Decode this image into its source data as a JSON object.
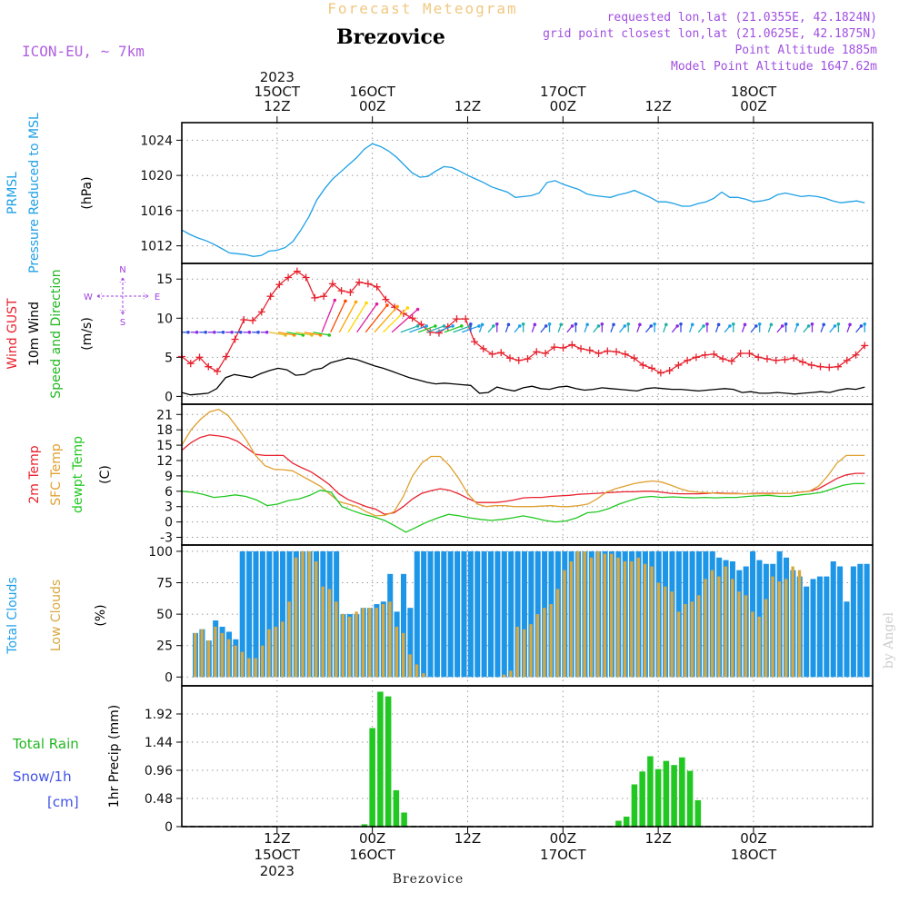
{
  "header": {
    "product_title": "Forecast Meteogram",
    "location": "Brezovice",
    "model": "ICON-EU, ~ 7km",
    "requested": "requested lon,lat (21.0355E, 42.1824N)",
    "grid_point": "grid point closest lon,lat (21.0625E, 42.1875N)",
    "point_altitude": "Point Altitude 1885m",
    "model_altitude": "Model Point Altitude 1647.62m",
    "credit": "by Angel",
    "footer_location": "Brezovice"
  },
  "time_axis": {
    "top_labels": [
      {
        "t": 12,
        "lines": [
          "2023",
          "15OCT",
          "12Z"
        ]
      },
      {
        "t": 24,
        "lines": [
          "16OCT",
          "00Z"
        ]
      },
      {
        "t": 36,
        "lines": [
          "12Z"
        ]
      },
      {
        "t": 48,
        "lines": [
          "17OCT",
          "00Z"
        ]
      },
      {
        "t": 60,
        "lines": [
          "12Z"
        ]
      },
      {
        "t": 72,
        "lines": [
          "18OCT",
          "00Z"
        ]
      }
    ],
    "bottom_labels": [
      {
        "t": 12,
        "lines": [
          "12Z",
          "15OCT",
          "2023"
        ]
      },
      {
        "t": 24,
        "lines": [
          "00Z",
          "16OCT"
        ]
      },
      {
        "t": 36,
        "lines": [
          "12Z"
        ]
      },
      {
        "t": 48,
        "lines": [
          "00Z",
          "17OCT"
        ]
      },
      {
        "t": 60,
        "lines": [
          "12Z"
        ]
      },
      {
        "t": 72,
        "lines": [
          "00Z",
          "18OCT"
        ]
      }
    ],
    "colors": {
      "grid": "#9a9a9a",
      "frame": "#000000"
    }
  },
  "chart_data": [
    {
      "type": "line",
      "panel": "pressure",
      "y_labels": [
        {
          "text": "PRMSL",
          "color": "#1ea0e6"
        },
        {
          "text": "Pressure Reduced to MSL",
          "color": "#1ea0e6"
        },
        {
          "text": "(hPa)",
          "color": "#000000"
        }
      ],
      "ylim": [
        1010,
        1026
      ],
      "yticks": [
        1012,
        1016,
        1020,
        1024
      ],
      "series": [
        {
          "color": "#1ea0e6",
          "x": [
            0,
            1,
            2,
            3,
            4,
            5,
            6,
            7,
            8,
            9,
            10,
            11,
            12,
            13,
            14,
            15,
            16,
            17,
            18,
            19,
            20,
            21,
            22,
            23,
            24,
            25,
            26,
            27,
            28,
            29,
            30,
            31,
            32,
            33,
            34,
            35,
            36,
            37,
            38,
            39,
            40,
            41,
            42,
            43,
            44,
            45,
            46,
            47,
            48,
            49,
            50,
            51,
            52,
            53,
            54,
            55,
            56,
            57,
            58,
            59,
            60,
            61,
            62,
            63,
            64,
            65,
            66,
            67,
            68,
            69,
            70,
            71,
            72,
            73,
            74,
            75,
            76,
            77,
            78,
            79,
            80,
            81,
            82,
            83,
            84,
            85,
            86
          ],
          "values": [
            1013.8,
            1013.3,
            1012.9,
            1012.6,
            1012.2,
            1011.7,
            1011.2,
            1011.1,
            1011.0,
            1010.8,
            1010.9,
            1011.4,
            1011.5,
            1011.8,
            1012.5,
            1013.8,
            1015.3,
            1017.2,
            1018.5,
            1019.6,
            1020.4,
            1021.2,
            1022.0,
            1023.0,
            1023.6,
            1023.3,
            1022.8,
            1022.1,
            1021.2,
            1020.3,
            1019.8,
            1019.9,
            1020.5,
            1021.0,
            1020.9,
            1020.5,
            1020.0,
            1019.6,
            1019.2,
            1018.7,
            1018.4,
            1018.1,
            1017.5,
            1017.6,
            1017.7,
            1018.0,
            1019.2,
            1019.4,
            1019.0,
            1018.7,
            1018.4,
            1017.9,
            1017.7,
            1017.6,
            1017.5,
            1017.8,
            1018.0,
            1018.3,
            1017.9,
            1017.5,
            1017.0,
            1017.0,
            1016.8,
            1016.5,
            1016.5,
            1016.8,
            1017.0,
            1017.4,
            1018.1,
            1017.5,
            1017.5,
            1017.3,
            1017.0,
            1017.1,
            1017.3,
            1017.8,
            1018.0,
            1017.8,
            1017.6,
            1017.7,
            1017.6,
            1017.4,
            1017.1,
            1016.9,
            1017.0,
            1017.1,
            1016.9
          ]
        }
      ]
    },
    {
      "type": "line",
      "panel": "wind",
      "y_labels": [
        {
          "text": "Wind GUST",
          "color": "#e8222e"
        },
        {
          "text": "10m Wind",
          "color": "#000000"
        },
        {
          "text": "Speed and Direction",
          "color": "#22b822"
        },
        {
          "text": "(m/s)",
          "color": "#000000"
        }
      ],
      "compass": {
        "w": "W",
        "e": "E",
        "n": "N",
        "s": "S",
        "color": "#a040e0"
      },
      "ylim": [
        -1,
        17
      ],
      "yticks": [
        0,
        5,
        10,
        15
      ],
      "series": [
        {
          "name": "gust",
          "color": "#e8222e",
          "marker": "plus",
          "values": [
            5.1,
            4.2,
            5.0,
            3.8,
            3.2,
            5.1,
            7.3,
            9.8,
            9.7,
            10.8,
            12.8,
            14.3,
            15.2,
            16.0,
            15.2,
            12.6,
            12.8,
            14.4,
            13.5,
            13.3,
            14.6,
            14.4,
            14.0,
            12.4,
            11.4,
            10.6,
            10.0,
            9.2,
            8.2,
            8.1,
            8.9,
            9.9,
            9.9,
            7.0,
            6.1,
            5.4,
            5.6,
            4.9,
            4.6,
            4.8,
            5.7,
            5.5,
            6.3,
            6.2,
            6.6,
            6.1,
            5.9,
            5.5,
            5.8,
            5.7,
            5.4,
            4.9,
            4.0,
            3.6,
            3.0,
            3.3,
            4.0,
            4.6,
            5.0,
            5.3,
            5.4,
            4.8,
            4.5,
            5.5,
            5.5,
            5.0,
            4.8,
            4.6,
            4.7,
            4.9,
            4.4,
            4.0,
            3.8,
            3.7,
            3.8,
            4.6,
            5.3,
            6.5
          ]
        },
        {
          "name": "wind10m",
          "color": "#000000",
          "values": [
            0.5,
            0.2,
            0.3,
            0.4,
            1.0,
            2.4,
            2.8,
            2.6,
            2.4,
            2.9,
            3.3,
            3.6,
            3.4,
            2.7,
            2.8,
            3.4,
            3.6,
            4.3,
            4.6,
            4.9,
            4.7,
            4.3,
            3.9,
            3.6,
            3.2,
            2.8,
            2.4,
            2.1,
            1.8,
            1.6,
            1.7,
            1.6,
            1.5,
            1.4,
            0.4,
            0.5,
            1.2,
            0.9,
            0.7,
            1.1,
            1.3,
            1.0,
            0.9,
            1.2,
            1.3,
            1.0,
            0.8,
            0.9,
            1.1,
            1.0,
            0.9,
            0.8,
            0.7,
            1.0,
            1.1,
            1.0,
            0.9,
            0.9,
            0.8,
            0.7,
            0.8,
            0.9,
            1.0,
            0.9,
            0.5,
            0.6,
            0.4,
            0.4,
            0.5,
            0.4,
            0.3,
            0.4,
            0.5,
            0.6,
            0.5,
            0.8,
            1.0,
            0.9,
            1.2
          ]
        }
      ]
    },
    {
      "type": "line",
      "panel": "temperature",
      "y_labels": [
        {
          "text": "2m Temp",
          "color": "#e8222e"
        },
        {
          "text": "SFC Temp",
          "color": "#e0a030"
        },
        {
          "text": "dewpt Temp",
          "color": "#22c822"
        },
        {
          "text": "(C)",
          "color": "#000000"
        }
      ],
      "ylim": [
        -4.5,
        23
      ],
      "yticks": [
        -3,
        0,
        3,
        6,
        9,
        12,
        15,
        18,
        21
      ],
      "series": [
        {
          "name": "t2m",
          "color": "#e8222e",
          "values": [
            14.0,
            15.5,
            16.5,
            17.0,
            16.8,
            16.5,
            15.8,
            14.5,
            13.2,
            13.0,
            13.0,
            13.0,
            11.5,
            10.6,
            9.8,
            8.6,
            7.3,
            5.5,
            4.4,
            3.7,
            3.0,
            2.5,
            1.5,
            1.8,
            3.0,
            4.5,
            5.6,
            6.1,
            6.5,
            6.2,
            5.5,
            4.6,
            3.8,
            3.8,
            3.8,
            4.0,
            4.3,
            4.7,
            4.8,
            4.8,
            5.0,
            5.1,
            5.2,
            5.4,
            5.5,
            5.6,
            5.7,
            5.8,
            5.9,
            5.9,
            6.0,
            6.0,
            5.8,
            5.6,
            5.5,
            5.5,
            5.5,
            5.6,
            5.7,
            5.6,
            5.6,
            5.5,
            5.6,
            5.6,
            5.6,
            5.6,
            5.6,
            5.8,
            6.0,
            6.5,
            7.5,
            8.5,
            9.2,
            9.5,
            9.5
          ]
        },
        {
          "name": "sfc",
          "color": "#e0a030",
          "values": [
            15.0,
            18.0,
            20.0,
            21.5,
            22.0,
            20.8,
            18.5,
            16.0,
            13.0,
            11.0,
            10.3,
            10.2,
            10.0,
            9.0,
            8.0,
            7.0,
            5.5,
            4.0,
            3.5,
            3.0,
            2.0,
            1.2,
            1.3,
            2.0,
            5.0,
            9.0,
            11.5,
            12.8,
            12.8,
            11.0,
            8.5,
            5.5,
            3.5,
            3.0,
            3.2,
            3.2,
            3.0,
            3.0,
            3.0,
            3.1,
            3.2,
            3.0,
            3.0,
            3.2,
            3.5,
            4.5,
            5.8,
            6.5,
            7.0,
            7.5,
            7.8,
            8.0,
            7.8,
            7.2,
            6.5,
            6.0,
            5.8,
            5.7,
            5.6,
            5.5,
            5.5,
            5.5,
            5.5,
            5.5,
            5.5,
            5.6,
            5.6,
            5.8,
            6.0,
            7.0,
            9.0,
            11.5,
            13.0,
            13.0,
            13.0
          ]
        },
        {
          "name": "dewpt",
          "color": "#22c822",
          "values": [
            6.0,
            5.8,
            5.4,
            4.8,
            5.0,
            5.3,
            5.0,
            4.3,
            3.2,
            3.5,
            4.2,
            4.5,
            5.2,
            6.2,
            5.8,
            3.0,
            2.2,
            1.5,
            1.0,
            0.3,
            -0.8,
            -2.0,
            -1.0,
            0.0,
            0.8,
            1.5,
            1.2,
            0.8,
            0.5,
            0.3,
            0.5,
            0.8,
            1.2,
            0.8,
            0.3,
            0.0,
            0.2,
            0.8,
            1.8,
            2.0,
            2.6,
            3.5,
            4.2,
            4.8,
            5.0,
            4.8,
            4.9,
            4.8,
            4.7,
            4.8,
            4.7,
            4.8,
            4.8,
            5.0,
            5.1,
            5.2,
            5.0,
            5.0,
            5.3,
            5.5,
            5.8,
            6.5,
            7.2,
            7.5,
            7.5
          ]
        }
      ]
    },
    {
      "type": "bar",
      "panel": "clouds",
      "y_labels": [
        {
          "text": "Total Clouds",
          "color": "#1ea0e6"
        },
        {
          "text": "Low Clouds",
          "color": "#d8a840"
        },
        {
          "text": "(%)",
          "color": "#000000"
        }
      ],
      "ylim": [
        -7,
        105
      ],
      "yticks": [
        0,
        25,
        50,
        75,
        100
      ],
      "series": [
        {
          "name": "total",
          "color": "#1e96e8",
          "values": [
            35,
            38,
            29,
            45,
            40,
            36,
            30,
            100,
            100,
            100,
            100,
            100,
            100,
            100,
            100,
            100,
            100,
            100,
            100,
            100,
            100,
            100,
            50,
            50,
            50,
            55,
            55,
            58,
            60,
            82,
            52,
            82,
            55,
            100,
            100,
            100,
            100,
            100,
            100,
            100,
            100,
            100,
            100,
            100,
            100,
            100,
            100,
            100,
            100,
            100,
            100,
            100,
            100,
            100,
            100,
            100,
            100,
            100,
            100,
            100,
            100,
            100,
            100,
            100,
            100,
            100,
            100,
            100,
            100,
            100,
            100,
            100,
            100,
            100,
            100,
            100,
            100,
            100,
            95,
            93,
            92,
            85,
            88,
            100,
            93,
            90,
            90,
            100,
            95,
            85,
            80,
            72,
            78,
            80,
            80,
            92,
            88,
            60,
            88,
            90,
            90
          ]
        },
        {
          "name": "low",
          "color": "#d8a840",
          "values": [
            35,
            38,
            29,
            40,
            35,
            30,
            25,
            20,
            15,
            15,
            25,
            38,
            40,
            44,
            60,
            95,
            100,
            100,
            92,
            72,
            70,
            60,
            50,
            48,
            52,
            55,
            55,
            55,
            58,
            60,
            40,
            35,
            18,
            10,
            3,
            0,
            0,
            0,
            0,
            0,
            0,
            0,
            0,
            0,
            0,
            0,
            2,
            5,
            40,
            38,
            42,
            50,
            55,
            58,
            70,
            85,
            92,
            100,
            100,
            95,
            100,
            98,
            98,
            95,
            92,
            92,
            95,
            90,
            88,
            75,
            72,
            68,
            52,
            58,
            60,
            65,
            78,
            85,
            80,
            88,
            78,
            68,
            65,
            52,
            48,
            62,
            80,
            76,
            78,
            88,
            85
          ]
        }
      ]
    },
    {
      "type": "bar",
      "panel": "precip",
      "left_labels": [
        {
          "text": "Total  Rain",
          "color": "#22b822"
        },
        {
          "text": "Snow/1h",
          "color": "#4050e8"
        },
        {
          "text": "[cm]",
          "color": "#4050e8"
        }
      ],
      "y_labels": [
        {
          "text": "1hr Precip (mm)",
          "color": "#000000"
        }
      ],
      "ylim": [
        0,
        2.4
      ],
      "yticks": [
        0,
        0.48,
        0.96,
        1.44,
        1.92
      ],
      "series": [
        {
          "name": "rain",
          "color": "#22c822",
          "x": [
            23,
            24,
            25,
            26,
            27,
            28,
            29,
            30,
            55,
            56,
            57,
            58,
            59,
            60,
            61,
            62,
            63,
            64,
            65,
            66
          ],
          "values": [
            0.04,
            1.68,
            2.3,
            2.22,
            0.62,
            0.24,
            0,
            0,
            0.1,
            0.17,
            0.72,
            0.94,
            1.2,
            0.98,
            1.12,
            1.05,
            1.18,
            0.95,
            0.45,
            0
          ]
        }
      ]
    }
  ]
}
